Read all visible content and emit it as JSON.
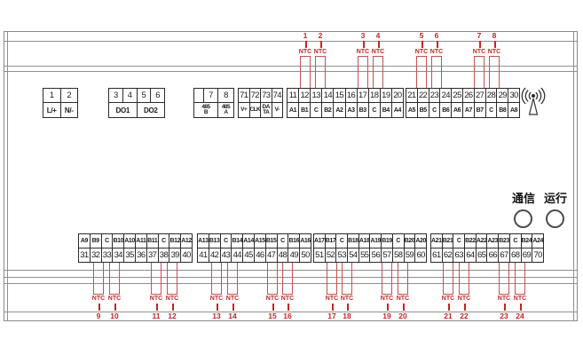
{
  "device": {
    "type_note": "24-channel NTC sensor terminal wiring diagram"
  },
  "indicators": [
    {
      "label": "通信"
    },
    {
      "label": "运行"
    }
  ],
  "icons": {
    "antenna": "wireless-antenna-icon"
  },
  "terminal_blocks": {
    "top": [
      {
        "id": "power",
        "row1": [
          "1",
          "2"
        ],
        "row2": [
          "L/+",
          "N/-"
        ]
      },
      {
        "id": "digital-outputs",
        "row1": [
          "3",
          "4",
          "5",
          "6"
        ],
        "row2": [
          {
            "t": "DO1",
            "span": 2
          },
          {
            "t": "DO2",
            "span": 2
          }
        ]
      },
      {
        "id": "rs485",
        "row1": [
          "",
          "7",
          "8"
        ],
        "row2": [
          {
            "t": "485\nB",
            "span": 2
          },
          {
            "t": "485\nA"
          }
        ]
      },
      {
        "id": "display-port",
        "row1": [
          "71",
          "72",
          "73",
          "74"
        ],
        "row2": [
          "V+",
          "CLK",
          "DA\nTA",
          "V-"
        ]
      },
      {
        "id": "sensor-terminals-1",
        "row1": [
          "11",
          "12",
          "13",
          "14",
          "15",
          "16",
          "17",
          "18",
          "19",
          "20"
        ],
        "row2": [
          "A1",
          "B1",
          "C",
          "B2",
          "A2",
          "A3",
          "B3",
          "C",
          "B4",
          "A4"
        ]
      },
      {
        "id": "sensor-terminals-2",
        "row1": [
          "21",
          "22",
          "23",
          "24",
          "25",
          "26",
          "27",
          "28",
          "29",
          "30"
        ],
        "row2": [
          "A5",
          "B5",
          "C",
          "B6",
          "A6",
          "A7",
          "B7",
          "C",
          "B8",
          "A8"
        ]
      }
    ],
    "bottom": [
      {
        "id": "sensor-terminals-3",
        "row1": [
          "A9",
          "B9",
          "C",
          "B10",
          "A10",
          "A11",
          "B11",
          "C",
          "B12",
          "A12"
        ],
        "row2": [
          "31",
          "32",
          "33",
          "34",
          "35",
          "36",
          "37",
          "38",
          "39",
          "40"
        ]
      },
      {
        "id": "sensor-terminals-4",
        "row1": [
          "A13",
          "B13",
          "C",
          "B14",
          "A14",
          "A15",
          "B15",
          "C",
          "B16",
          "A16"
        ],
        "row2": [
          "41",
          "42",
          "43",
          "44",
          "45",
          "46",
          "47",
          "48",
          "49",
          "50"
        ]
      },
      {
        "id": "sensor-terminals-5",
        "row1": [
          "A17",
          "B17",
          "C",
          "B18",
          "A18",
          "A19",
          "B19",
          "C",
          "B20",
          "A20"
        ],
        "row2": [
          "51",
          "52",
          "53",
          "54",
          "55",
          "56",
          "57",
          "58",
          "59",
          "60"
        ]
      },
      {
        "id": "sensor-terminals-6",
        "row1": [
          "A21",
          "B21",
          "C",
          "B22",
          "A22",
          "A23",
          "B23",
          "C",
          "B24",
          "A24"
        ],
        "row2": [
          "61",
          "62",
          "63",
          "64",
          "65",
          "66",
          "67",
          "68",
          "69",
          "70"
        ]
      }
    ]
  },
  "ntc_sensors": {
    "top": [
      {
        "num": "1",
        "label": "NTC"
      },
      {
        "num": "2",
        "label": "NTC"
      },
      {
        "num": "3",
        "label": "NTC"
      },
      {
        "num": "4",
        "label": "NTC"
      },
      {
        "num": "5",
        "label": "NTC"
      },
      {
        "num": "6",
        "label": "NTC"
      },
      {
        "num": "7",
        "label": "NTC"
      },
      {
        "num": "8",
        "label": "NTC"
      }
    ],
    "bottom": [
      {
        "num": "9",
        "label": "NTC"
      },
      {
        "num": "10",
        "label": "NTC"
      },
      {
        "num": "11",
        "label": "NTC"
      },
      {
        "num": "12",
        "label": "NTC"
      },
      {
        "num": "13",
        "label": "NTC"
      },
      {
        "num": "14",
        "label": "NTC"
      },
      {
        "num": "15",
        "label": "NTC"
      },
      {
        "num": "16",
        "label": "NTC"
      },
      {
        "num": "17",
        "label": "NTC"
      },
      {
        "num": "18",
        "label": "NTC"
      },
      {
        "num": "19",
        "label": "NTC"
      },
      {
        "num": "20",
        "label": "NTC"
      },
      {
        "num": "21",
        "label": "NTC"
      },
      {
        "num": "22",
        "label": "NTC"
      },
      {
        "num": "23",
        "label": "NTC"
      },
      {
        "num": "24",
        "label": "NTC"
      }
    ]
  },
  "colors": {
    "wire_red": "#c42525",
    "frame_gray": "#8a8a8a",
    "block_border": "#2a2a2a"
  }
}
